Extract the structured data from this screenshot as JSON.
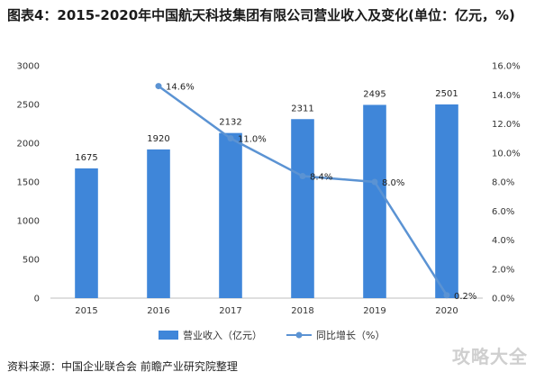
{
  "chart_data": {
    "type": "bar",
    "title": "图表4：2015-2020年中国航天科技集团有限公司营业收入及变化(单位：亿元，%)",
    "categories": [
      "2015",
      "2016",
      "2017",
      "2018",
      "2019",
      "2020"
    ],
    "series": [
      {
        "name": "营业收入（亿元）",
        "type": "bar",
        "axis": "left",
        "values": [
          1675,
          1920,
          2132,
          2311,
          2495,
          2501
        ],
        "labels": [
          "1675",
          "1920",
          "2132",
          "2311",
          "2495",
          "2501"
        ],
        "color": "#3f86d9"
      },
      {
        "name": "同比增长（%）",
        "type": "line",
        "axis": "right",
        "values": [
          null,
          14.6,
          11.0,
          8.4,
          8.0,
          0.2
        ],
        "labels": [
          "",
          "14.6%",
          "11.0%",
          "8.4%",
          "8.0%",
          "0.2%"
        ],
        "color": "#5b93d3"
      }
    ],
    "y_left": {
      "min": 0,
      "max": 3000,
      "ticks": [
        "0",
        "500",
        "1000",
        "1500",
        "2000",
        "2500",
        "3000"
      ]
    },
    "y_right": {
      "min": 0,
      "max": 16,
      "ticks": [
        "0.0%",
        "2.0%",
        "4.0%",
        "6.0%",
        "8.0%",
        "10.0%",
        "12.0%",
        "14.0%",
        "16.0%"
      ]
    },
    "grid": false,
    "legend": "bottom"
  },
  "source": "资料来源：中国企业联合会 前瞻产业研究院整理",
  "corner_mark": "攻略大全"
}
